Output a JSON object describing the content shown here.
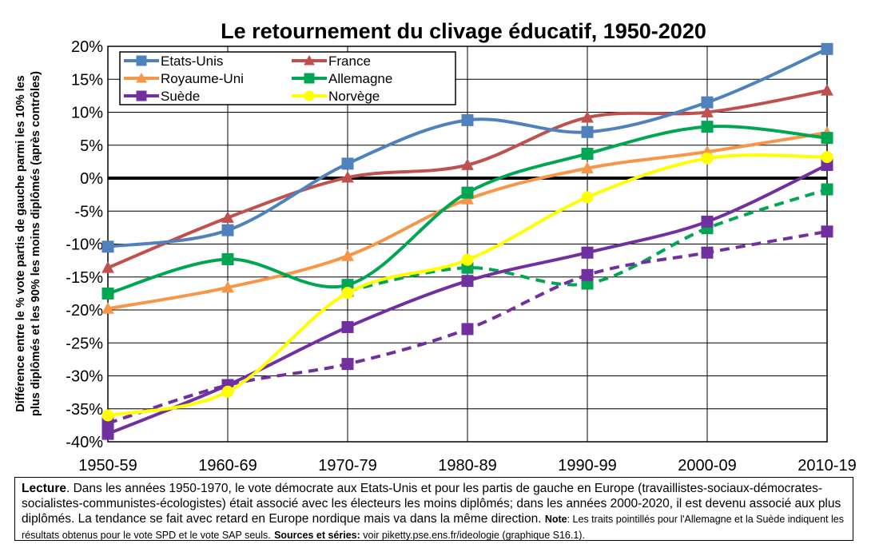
{
  "chart_data": {
    "type": "line",
    "title": "Le retournement du clivage éducatif, 1950-2020",
    "ylabel_line1": "Différence entre le % vote partis de gauche parmi les 10% les",
    "ylabel_line2": "plus diplômés et les 90% les moins diplômés (après contrôles)",
    "xlabel": "",
    "categories": [
      "1950-59",
      "1960-69",
      "1970-79",
      "1980-89",
      "1990-99",
      "2000-09",
      "2010-19"
    ],
    "y_ticks": [
      "20%",
      "15%",
      "10%",
      "5%",
      "0%",
      "-5%",
      "-10%",
      "-15%",
      "-20%",
      "-25%",
      "-30%",
      "-35%",
      "-40%"
    ],
    "ylim": [
      -40,
      20
    ],
    "grid": true,
    "legend_position": "top-left",
    "series": [
      {
        "name": "Etats-Unis",
        "color": "#4F81BD",
        "marker": "square",
        "style": "solid",
        "values": [
          -10.4,
          -7.9,
          2.2,
          8.8,
          7.0,
          11.5,
          19.6
        ]
      },
      {
        "name": "France",
        "color": "#C0504D",
        "marker": "triangle",
        "style": "solid",
        "values": [
          -13.6,
          -6.0,
          0.1,
          2.0,
          9.2,
          10.0,
          13.3
        ]
      },
      {
        "name": "Royaume-Uni",
        "color": "#F79646",
        "marker": "triangle",
        "style": "solid",
        "values": [
          -19.8,
          -16.6,
          -11.8,
          -3.2,
          1.5,
          4.0,
          6.9
        ]
      },
      {
        "name": "Allemagne",
        "color": "#00A651",
        "marker": "square",
        "style": "solid",
        "values": [
          -17.5,
          -12.3,
          -16.2,
          -2.2,
          3.7,
          7.8,
          6.1
        ]
      },
      {
        "name": "Suède",
        "color": "#7030A0",
        "marker": "square",
        "style": "solid",
        "values": [
          -38.8,
          -31.4,
          -22.6,
          -15.6,
          -11.3,
          -6.6,
          2.0
        ]
      },
      {
        "name": "Norvège",
        "color": "#FFFF00",
        "marker": "circle",
        "style": "solid",
        "values": [
          -36.0,
          -32.4,
          -17.4,
          -12.4,
          -2.9,
          3.0,
          3.2
        ]
      },
      {
        "name": "",
        "color": "#00A651",
        "marker": "square",
        "style": "dashed",
        "values": [
          null,
          null,
          -17.1,
          -13.6,
          -16.0,
          -7.6,
          -1.7
        ]
      },
      {
        "name": "",
        "color": "#7030A0",
        "marker": "square",
        "style": "dashed",
        "values": [
          -37.2,
          -31.4,
          -28.2,
          -22.9,
          -14.7,
          -11.3,
          -8.1
        ]
      }
    ]
  },
  "note": {
    "lecture_label": "Lecture",
    "lecture_text": ". Dans les années 1950-1970, le vote démocrate aux Etats-Unis et pour les partis de gauche en Europe (travaillistes-sociaux-démocrates-socialistes-communistes-écologistes) était associé avec les électeurs les moins diplômés; dans les années 2000-2020, il est devenu associé aux plus diplômés. La tendance se fait avec retard en Europe nordique mais va dans la même direction.",
    "note_label": "Note",
    "note_text": ": Les traits pointillés pour l'Allemagne et la Suède indiquent les résultats obtenus pour le vote SPD et le vote SAP seuls.",
    "sources_label": "Sources et séries:",
    "sources_text": " voir piketty.pse.ens.fr/ideologie (graphique S16.1)."
  }
}
